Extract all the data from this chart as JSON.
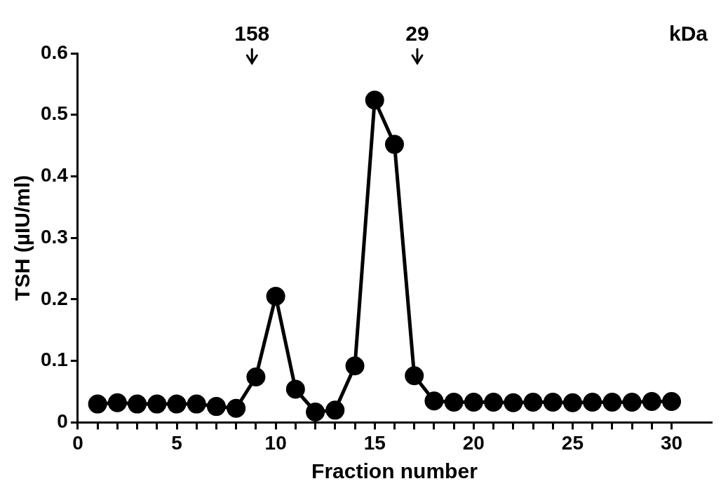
{
  "chart_data": {
    "type": "line",
    "xlabel": "Fraction number",
    "ylabel": "TSH (µIU/ml)",
    "x": [
      1,
      2,
      3,
      4,
      5,
      6,
      7,
      8,
      9,
      10,
      11,
      12,
      13,
      14,
      15,
      16,
      17,
      18,
      19,
      20,
      21,
      22,
      23,
      24,
      25,
      26,
      27,
      28,
      29,
      30
    ],
    "series": [
      {
        "color": "#000000",
        "values": [
          0.03,
          0.032,
          0.03,
          0.03,
          0.03,
          0.03,
          0.026,
          0.023,
          0.074,
          0.205,
          0.054,
          0.017,
          0.02,
          0.092,
          0.524,
          0.452,
          0.076,
          0.035,
          0.033,
          0.033,
          0.033,
          0.032,
          0.033,
          0.033,
          0.032,
          0.033,
          0.033,
          0.033,
          0.034,
          0.034
        ]
      }
    ],
    "marker": "circle",
    "line_style": "solid",
    "xlim": [
      0,
      32
    ],
    "xticks": [
      0,
      {
        "value": 1,
        "label": null
      },
      {
        "value": 2,
        "label": null
      },
      {
        "value": 3,
        "label": null
      },
      {
        "value": 4,
        "label": null
      },
      5,
      {
        "value": 6,
        "label": null
      },
      {
        "value": 7,
        "label": null
      },
      {
        "value": 8,
        "label": null
      },
      {
        "value": 9,
        "label": null
      },
      10,
      {
        "value": 11,
        "label": null
      },
      {
        "value": 12,
        "label": null
      },
      {
        "value": 13,
        "label": null
      },
      {
        "value": 14,
        "label": null
      },
      15,
      {
        "value": 16,
        "label": null
      },
      {
        "value": 17,
        "label": null
      },
      {
        "value": 18,
        "label": null
      },
      {
        "value": 19,
        "label": null
      },
      20,
      {
        "value": 21,
        "label": null
      },
      {
        "value": 22,
        "label": null
      },
      {
        "value": 23,
        "label": null
      },
      {
        "value": 24,
        "label": null
      },
      25,
      {
        "value": 26,
        "label": null
      },
      {
        "value": 27,
        "label": null
      },
      {
        "value": 28,
        "label": null
      },
      {
        "value": 29,
        "label": null
      },
      30
    ],
    "ylim": [
      0,
      0.6
    ],
    "yticks": [
      0,
      0.1,
      0.2,
      0.3,
      0.4,
      0.5,
      0.6
    ],
    "annotations": [
      "158",
      "29",
      "kDa"
    ]
  }
}
